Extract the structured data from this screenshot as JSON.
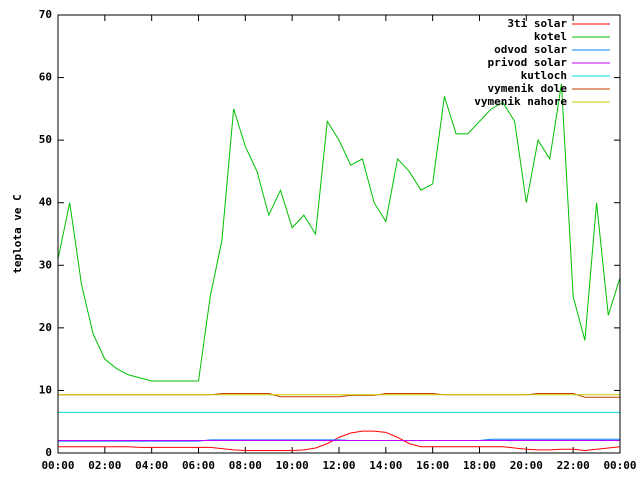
{
  "chart_data": {
    "type": "line",
    "ylabel": "teplota ve C",
    "x": [
      0,
      0.5,
      1,
      1.5,
      2,
      2.5,
      3,
      3.5,
      4,
      4.5,
      5,
      5.5,
      6,
      6.5,
      7,
      7.5,
      8,
      8.5,
      9,
      9.5,
      10,
      10.5,
      11,
      11.5,
      12,
      12.5,
      13,
      13.5,
      14,
      14.5,
      15,
      15.5,
      16,
      16.5,
      17,
      17.5,
      18,
      18.5,
      19,
      19.5,
      20,
      20.5,
      21,
      21.5,
      22,
      22.5,
      23,
      23.5,
      24
    ],
    "xlim": [
      0,
      24
    ],
    "xticks": [
      {
        "value": 0,
        "label": "00:00"
      },
      {
        "value": 2,
        "label": "02:00"
      },
      {
        "value": 4,
        "label": "04:00"
      },
      {
        "value": 6,
        "label": "06:00"
      },
      {
        "value": 8,
        "label": "08:00"
      },
      {
        "value": 10,
        "label": "10:00"
      },
      {
        "value": 12,
        "label": "12:00"
      },
      {
        "value": 14,
        "label": "14:00"
      },
      {
        "value": 16,
        "label": "16:00"
      },
      {
        "value": 18,
        "label": "18:00"
      },
      {
        "value": 20,
        "label": "20:00"
      },
      {
        "value": 22,
        "label": "22:00"
      },
      {
        "value": 24,
        "label": "00:00"
      }
    ],
    "ylim": [
      0,
      70
    ],
    "yticks": [
      0,
      10,
      20,
      30,
      40,
      50,
      60,
      70
    ],
    "legend": "top-right",
    "series": [
      {
        "name": "3ti solar",
        "color": "#ff0000",
        "values": [
          1,
          1,
          1,
          1,
          1,
          1,
          1,
          0.9,
          0.9,
          0.9,
          0.9,
          0.9,
          0.9,
          0.9,
          0.7,
          0.5,
          0.4,
          0.4,
          0.4,
          0.4,
          0.4,
          0.5,
          0.8,
          1.5,
          2.5,
          3.2,
          3.5,
          3.5,
          3.3,
          2.5,
          1.5,
          1,
          1,
          1,
          1,
          1,
          1,
          1,
          1,
          0.8,
          0.6,
          0.5,
          0.5,
          0.6,
          0.6,
          0.4,
          0.6,
          0.8,
          1
        ]
      },
      {
        "name": "kotel",
        "color": "#00c000",
        "values": [
          31,
          40,
          27,
          19,
          15,
          13.5,
          12.5,
          12,
          11.5,
          11.5,
          11.5,
          11.5,
          11.5,
          25,
          34,
          55,
          49,
          45,
          38,
          42,
          36,
          38,
          35,
          53,
          50,
          46,
          47,
          40,
          37,
          47,
          45,
          42,
          43,
          57,
          51,
          51,
          53,
          55,
          56,
          53,
          40,
          50,
          47,
          59,
          25,
          18,
          40,
          22,
          28
        ]
      },
      {
        "name": "odvod solar",
        "color": "#0080ff",
        "values": [
          1.9,
          1.9,
          1.9,
          1.9,
          1.9,
          1.9,
          1.9,
          1.9,
          1.9,
          1.9,
          1.9,
          1.9,
          1.9,
          2.1,
          2.1,
          2.1,
          2.1,
          2.1,
          2.1,
          2.1,
          2.1,
          2.1,
          2.1,
          2.1,
          2.1,
          2,
          2,
          2,
          2,
          2,
          2,
          2,
          2,
          2,
          2,
          2,
          2,
          2.2,
          2.2,
          2.2,
          2.2,
          2.2,
          2.2,
          2.2,
          2.2,
          2.2,
          2.2,
          2.2,
          2.2
        ]
      },
      {
        "name": "privod solar",
        "color": "#c000ff",
        "values": [
          2,
          2,
          2,
          2,
          2,
          2,
          2,
          2,
          2,
          2,
          2,
          2,
          2,
          2,
          2,
          2,
          2,
          2,
          2,
          2,
          2,
          2,
          2,
          2,
          2,
          2,
          2,
          2,
          2,
          2,
          2,
          2,
          2,
          2,
          2,
          2,
          2,
          2,
          2,
          2,
          2,
          2,
          2,
          2,
          2,
          2,
          2,
          2,
          2
        ]
      },
      {
        "name": "kutloch",
        "color": "#00dddd",
        "values": [
          6.5,
          6.5,
          6.5,
          6.5,
          6.5,
          6.5,
          6.5,
          6.5,
          6.5,
          6.5,
          6.5,
          6.5,
          6.5,
          6.5,
          6.5,
          6.5,
          6.5,
          6.5,
          6.5,
          6.5,
          6.5,
          6.5,
          6.5,
          6.5,
          6.5,
          6.5,
          6.5,
          6.5,
          6.5,
          6.5,
          6.5,
          6.5,
          6.5,
          6.5,
          6.5,
          6.5,
          6.5,
          6.5,
          6.5,
          6.5,
          6.5,
          6.5,
          6.5,
          6.5,
          6.5,
          6.5,
          6.5,
          6.5,
          6.5
        ]
      },
      {
        "name": "vymenik dole",
        "color": "#c04000",
        "values": [
          9.3,
          9.3,
          9.3,
          9.3,
          9.3,
          9.3,
          9.3,
          9.3,
          9.3,
          9.3,
          9.3,
          9.3,
          9.3,
          9.3,
          9.5,
          9.5,
          9.5,
          9.5,
          9.5,
          9,
          9,
          9,
          9,
          9,
          9,
          9.2,
          9.2,
          9.2,
          9.5,
          9.5,
          9.5,
          9.5,
          9.5,
          9.3,
          9.3,
          9.3,
          9.3,
          9.3,
          9.3,
          9.3,
          9.3,
          9.5,
          9.5,
          9.5,
          9.5,
          8.9,
          8.9,
          8.9,
          8.9
        ]
      },
      {
        "name": "vymenik nahore",
        "color": "#c8c800",
        "values": [
          9.3,
          9.3,
          9.3,
          9.3,
          9.3,
          9.3,
          9.3,
          9.3,
          9.3,
          9.3,
          9.3,
          9.3,
          9.3,
          9.3,
          9.3,
          9.3,
          9.3,
          9.3,
          9.3,
          9.3,
          9.3,
          9.3,
          9.3,
          9.3,
          9.3,
          9.3,
          9.3,
          9.3,
          9.3,
          9.3,
          9.3,
          9.3,
          9.3,
          9.3,
          9.3,
          9.3,
          9.3,
          9.3,
          9.3,
          9.3,
          9.3,
          9.3,
          9.3,
          9.3,
          9.3,
          9.3,
          9.3,
          9.3,
          9.3
        ]
      }
    ]
  }
}
